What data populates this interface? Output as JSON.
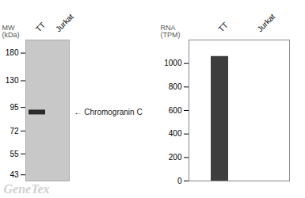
{
  "chart_data": [
    {
      "type": "blot",
      "ylabel": "MW\n(kDa)",
      "categories": [
        "TT",
        "Jurkat"
      ],
      "values": [
        90,
        null
      ],
      "color": "#2a2a2a",
      "log": "y",
      "ylim": [
        40,
        210
      ],
      "yticks": [
        180,
        130,
        95,
        72,
        55,
        43
      ],
      "annotations": [
        "← Chromogranin C",
        "GeneTex"
      ]
    },
    {
      "type": "bar",
      "ylabel": "RNA\n(TPM)",
      "categories": [
        "TT",
        "Jurkat"
      ],
      "values": [
        1060,
        0
      ],
      "color": "#3d3d3d",
      "ylim": [
        0,
        1200
      ],
      "yticks": [
        0,
        200,
        400,
        600,
        800,
        1000
      ]
    }
  ]
}
